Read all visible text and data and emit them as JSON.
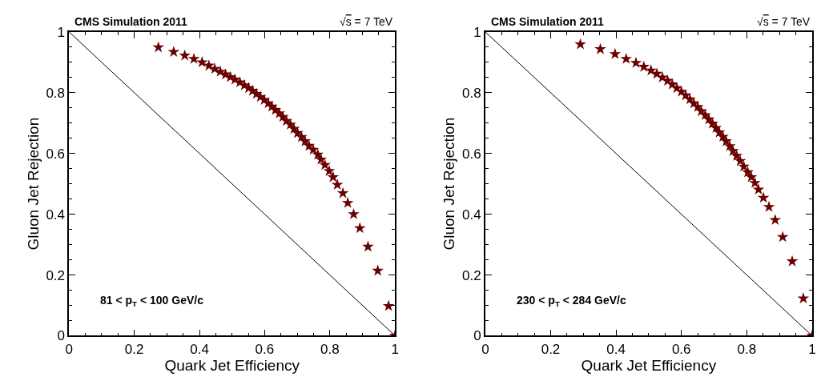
{
  "chart_data": [
    {
      "type": "scatter",
      "title": "CMS Simulation 2011",
      "xlabel": "Quark Jet Efficiency",
      "ylabel": "Gluon Jet Rejection",
      "annotations": [
        "√s = 7 TeV",
        "81 < p$_{T}$ < 100 GeV/c"
      ],
      "xlim": [
        0,
        1
      ],
      "ylim": [
        0,
        1
      ],
      "xticks": [
        0,
        0.2,
        0.4,
        0.6,
        0.8,
        1
      ],
      "yticks": [
        0,
        0.2,
        0.4,
        0.6,
        0.8,
        1
      ],
      "marker": "star",
      "series": [
        {
          "type": "line",
          "color": "#000000",
          "x": [
            0,
            1
          ],
          "values": [
            1,
            0
          ],
          "marker": "none"
        },
        {
          "color": "#6b0000",
          "x": [
            0.274,
            0.321,
            0.355,
            0.383,
            0.408,
            0.429,
            0.447,
            0.464,
            0.48,
            0.495,
            0.509,
            0.524,
            0.538,
            0.551,
            0.563,
            0.575,
            0.587,
            0.599,
            0.611,
            0.622,
            0.633,
            0.645,
            0.656,
            0.667,
            0.679,
            0.69,
            0.701,
            0.713,
            0.724,
            0.736,
            0.749,
            0.763,
            0.773,
            0.785,
            0.798,
            0.81,
            0.823,
            0.84,
            0.855,
            0.873,
            0.892,
            0.917,
            0.947,
            0.98,
            1.0
          ],
          "values": [
            0.949,
            0.934,
            0.922,
            0.911,
            0.9,
            0.889,
            0.878,
            0.869,
            0.86,
            0.851,
            0.843,
            0.834,
            0.824,
            0.815,
            0.806,
            0.796,
            0.786,
            0.776,
            0.765,
            0.754,
            0.743,
            0.732,
            0.72,
            0.707,
            0.695,
            0.681,
            0.667,
            0.654,
            0.64,
            0.625,
            0.612,
            0.596,
            0.58,
            0.562,
            0.542,
            0.522,
            0.497,
            0.469,
            0.437,
            0.4,
            0.354,
            0.293,
            0.214,
            0.098,
            0.0
          ]
        }
      ]
    },
    {
      "type": "scatter",
      "title": "CMS Simulation 2011",
      "xlabel": "Quark Jet Efficiency",
      "ylabel": "Gluon Jet Rejection",
      "annotations": [
        "√s = 7 TeV",
        "230 < p$_{T}$ < 284 GeV/c"
      ],
      "xlim": [
        0,
        1
      ],
      "ylim": [
        0,
        1
      ],
      "xticks": [
        0,
        0.2,
        0.4,
        0.6,
        0.8,
        1
      ],
      "yticks": [
        0,
        0.2,
        0.4,
        0.6,
        0.8,
        1
      ],
      "marker": "star",
      "series": [
        {
          "type": "line",
          "color": "#000000",
          "x": [
            0,
            1
          ],
          "values": [
            1,
            0
          ],
          "marker": "none"
        },
        {
          "color": "#6b0000",
          "x": [
            0.291,
            0.352,
            0.397,
            0.431,
            0.461,
            0.485,
            0.507,
            0.525,
            0.542,
            0.558,
            0.572,
            0.586,
            0.6,
            0.613,
            0.626,
            0.638,
            0.65,
            0.661,
            0.673,
            0.684,
            0.695,
            0.706,
            0.716,
            0.727,
            0.737,
            0.748,
            0.758,
            0.769,
            0.78,
            0.791,
            0.803,
            0.814,
            0.825,
            0.836,
            0.851,
            0.868,
            0.887,
            0.91,
            0.939,
            0.973,
            1.0
          ],
          "values": [
            0.959,
            0.943,
            0.927,
            0.911,
            0.898,
            0.885,
            0.873,
            0.862,
            0.85,
            0.839,
            0.827,
            0.815,
            0.803,
            0.791,
            0.778,
            0.765,
            0.753,
            0.739,
            0.726,
            0.712,
            0.698,
            0.684,
            0.669,
            0.655,
            0.64,
            0.624,
            0.608,
            0.592,
            0.575,
            0.557,
            0.538,
            0.522,
            0.503,
            0.481,
            0.454,
            0.424,
            0.381,
            0.325,
            0.245,
            0.123,
            0.0
          ]
        }
      ]
    }
  ]
}
